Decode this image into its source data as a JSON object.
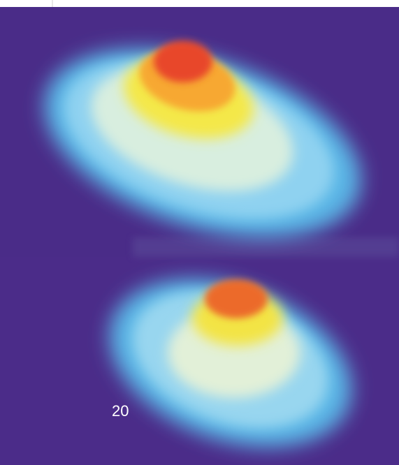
{
  "label": "20"
}
